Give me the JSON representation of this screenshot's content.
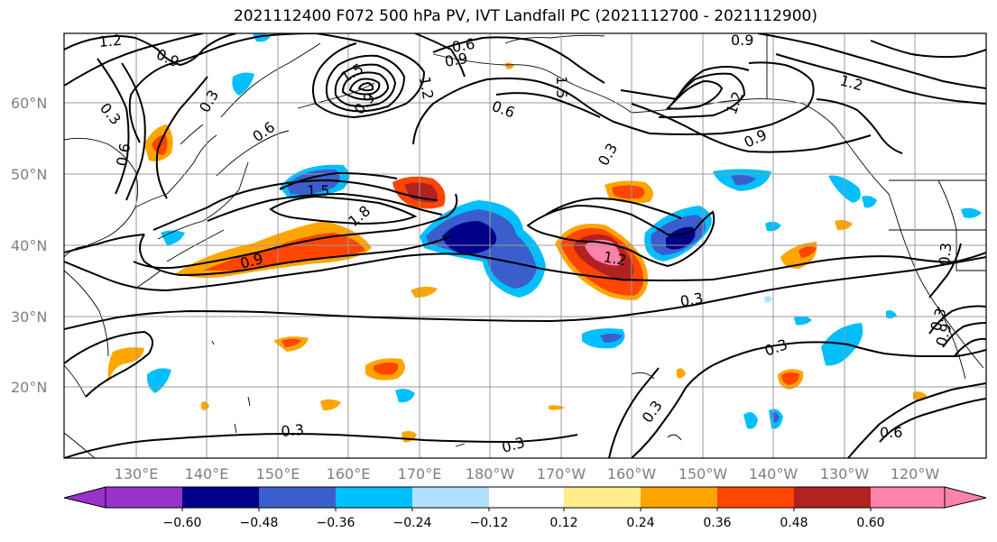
{
  "title": "2021112400 F072 500 hPa PV, IVT Landfall PC (2021112700 - 2021112900)",
  "lat_labels": [
    "60°N",
    "50°N",
    "40°N",
    "30°N",
    "20°N"
  ],
  "lon_labels": [
    "130°E",
    "140°E",
    "150°E",
    "160°E",
    "170°E",
    "180°W",
    "170°W",
    "160°W",
    "150°W",
    "140°W",
    "130°W",
    "120°W"
  ],
  "contour_labels": [
    "1.2",
    "0.9",
    "0.6",
    "0.9",
    "0.3",
    "0.3",
    "0.6",
    "1.5",
    "0.6",
    "0.9",
    "0.6",
    "1.2",
    "1.5",
    "0.9",
    "1.2",
    "0.9",
    "0.3",
    "1.5",
    "0.9",
    "1.2",
    "1.8",
    "1.2",
    "0.3",
    "0.3",
    "0.3",
    "0.3",
    "0.6",
    "0.3",
    "0.3",
    "0.9",
    "0.3"
  ],
  "colorbar": {
    "ticks": [
      "−0.60",
      "−0.48",
      "−0.36",
      "−0.24",
      "−0.12",
      "0.12",
      "0.24",
      "0.36",
      "0.48",
      "0.60"
    ],
    "colors": [
      "#9932cc",
      "#00008b",
      "#3a5fcd",
      "#00bfff",
      "#b0e2ff",
      "#ffffff",
      "#ffec8b",
      "#ffa500",
      "#ff4500",
      "#b22222",
      "#ff82ab"
    ]
  }
}
